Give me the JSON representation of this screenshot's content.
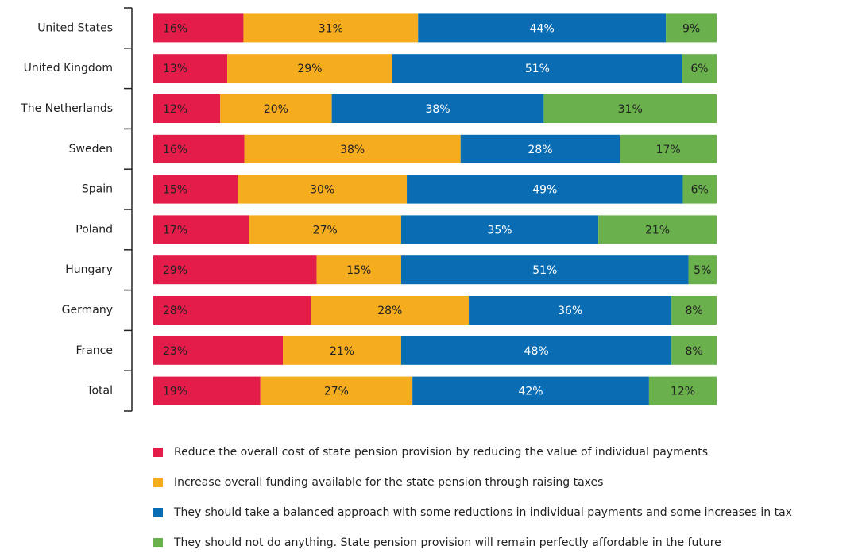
{
  "chart_data": {
    "type": "bar",
    "orientation": "horizontal",
    "stacked": true,
    "categories": [
      "United States",
      "United Kingdom",
      "The Netherlands",
      "Sweden",
      "Spain",
      "Poland",
      "Hungary",
      "Germany",
      "France",
      "Total"
    ],
    "series": [
      {
        "name": "Reduce the overall cost of state pension provision by reducing the value of individual payments",
        "color": "#e31c4a",
        "values": [
          16,
          13,
          12,
          16,
          15,
          17,
          29,
          28,
          23,
          19
        ],
        "value_labels": [
          "16%",
          "13%",
          "12%",
          "16%",
          "15%",
          "17%",
          "29%",
          "28%",
          "23%",
          "19%"
        ]
      },
      {
        "name": "Increase overall funding available for the state pension through raising taxes",
        "color": "#f5ad1f",
        "values": [
          31,
          29,
          20,
          38,
          30,
          27,
          15,
          28,
          21,
          27
        ],
        "value_labels": [
          "31%",
          "29%",
          "20%",
          "38%",
          "30%",
          "27%",
          "15%",
          "28%",
          "21%",
          "27%"
        ]
      },
      {
        "name": "They should take a balanced approach with some reductions in individual payments and some increases in tax",
        "color": "#0a6db3",
        "values": [
          44,
          51,
          38,
          28,
          49,
          35,
          51,
          36,
          48,
          42
        ],
        "value_labels": [
          "44%",
          "51%",
          "38%",
          "28%",
          "49%",
          "35%",
          "51%",
          "36%",
          "48%",
          "42%"
        ]
      },
      {
        "name": "They should not do anything. State pension provision will remain perfectly affordable in the future",
        "color": "#6ab04c",
        "values": [
          9,
          6,
          31,
          17,
          6,
          21,
          5,
          8,
          8,
          12
        ],
        "value_labels": [
          "9%",
          "6%",
          "31%",
          "17%",
          "6%",
          "21%",
          "5%",
          "8%",
          "8%",
          "12%"
        ]
      }
    ]
  }
}
